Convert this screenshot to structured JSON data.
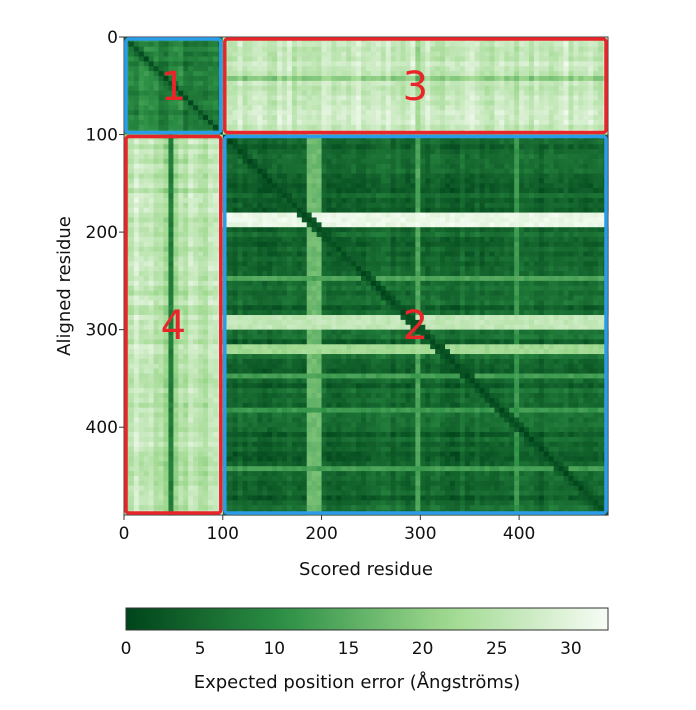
{
  "chart_data": {
    "type": "heatmap",
    "title": "",
    "xlabel": "Scored residue",
    "ylabel": "Aligned residue",
    "xlim": [
      0,
      490
    ],
    "ylim": [
      0,
      490
    ],
    "x_ticks": [
      0,
      100,
      200,
      300,
      400
    ],
    "y_ticks": [
      0,
      100,
      200,
      300,
      400
    ],
    "x_tick_labels": [
      "0",
      "100",
      "200",
      "300",
      "400"
    ],
    "y_tick_labels": [
      "0",
      "100",
      "200",
      "300",
      "400"
    ],
    "colorbar": {
      "label": "Expected position error (Ångströms)",
      "range": [
        0,
        32.5
      ],
      "ticks": [
        0,
        5,
        10,
        15,
        20,
        25,
        30
      ],
      "tick_labels": [
        "0",
        "5",
        "10",
        "15",
        "20",
        "25",
        "30"
      ],
      "colors": [
        "#00441b",
        "#2e9146",
        "#9fd98f",
        "#f7fcf5"
      ]
    },
    "domain_boundary": 100,
    "blocks": [
      {
        "label": "1",
        "x_range": [
          0,
          100
        ],
        "y_range": [
          0,
          100
        ],
        "mean_error": 8,
        "outline": "blue",
        "color": "#2b9de8"
      },
      {
        "label": "2",
        "x_range": [
          100,
          490
        ],
        "y_range": [
          100,
          490
        ],
        "mean_error": 5,
        "outline": "blue",
        "color": "#2b9de8"
      },
      {
        "label": "3",
        "x_range": [
          100,
          490
        ],
        "y_range": [
          0,
          100
        ],
        "mean_error": 28,
        "outline": "red",
        "color": "#e8262a"
      },
      {
        "label": "4",
        "x_range": [
          0,
          100
        ],
        "y_range": [
          100,
          490
        ],
        "mean_error": 26,
        "outline": "red",
        "color": "#e8262a"
      }
    ],
    "high_error_rows": [
      {
        "start": 178,
        "end": 196,
        "error": 31
      },
      {
        "start": 285,
        "end": 300,
        "error": 26
      },
      {
        "start": 315,
        "end": 327,
        "error": 22
      },
      {
        "start": 245,
        "end": 250,
        "error": 14
      },
      {
        "start": 345,
        "end": 350,
        "error": 13
      },
      {
        "start": 380,
        "end": 385,
        "error": 12
      },
      {
        "start": 440,
        "end": 446,
        "error": 13
      }
    ],
    "high_error_columns": [
      {
        "start": 185,
        "end": 200,
        "error": 17
      },
      {
        "start": 295,
        "end": 300,
        "error": 14
      },
      {
        "start": 395,
        "end": 400,
        "error": 12
      }
    ],
    "low_error_column_in_block_4": {
      "x": 48,
      "error": 8
    }
  }
}
